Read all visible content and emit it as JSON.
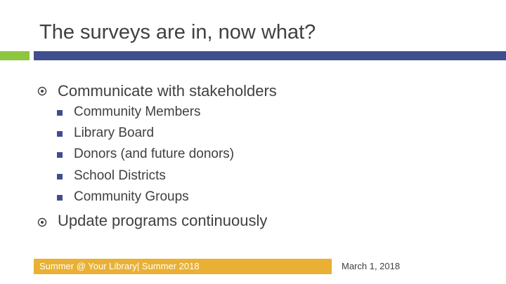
{
  "title": "The surveys are in, now what?",
  "bullets": [
    {
      "text": "Communicate with stakeholders",
      "sub": [
        "Community Members",
        "Library Board",
        "Donors (and future donors)",
        "School Districts",
        "Community Groups"
      ]
    },
    {
      "text": "Update programs continuously",
      "sub": []
    }
  ],
  "footer": {
    "text": "Summer @ Your Library| Summer 2018",
    "date": "March 1, 2018"
  },
  "colors": {
    "accent_green": "#8dc63f",
    "accent_blue": "#3f4e8c",
    "footer_bar": "#e9b033",
    "text": "#404040"
  },
  "icons": {
    "level1_bullet": "circled-dot-icon",
    "level2_bullet": "square-bullet-icon"
  }
}
